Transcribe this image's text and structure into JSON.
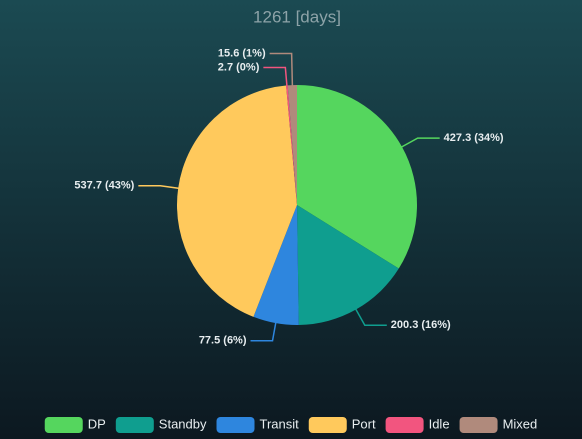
{
  "chart_data": {
    "type": "pie",
    "title": "1261 [days]",
    "categories": [
      "DP",
      "Standby",
      "Transit",
      "Port",
      "Idle",
      "Mixed"
    ],
    "values": [
      427.3,
      200.3,
      77.5,
      537.7,
      2.7,
      15.6
    ],
    "value_labels": [
      "427.3 (34%)",
      "200.3 (16%)",
      "77.5 (6%)",
      "537.7 (43%)",
      "2.7 (0%)",
      "15.6 (1%)"
    ],
    "colors": [
      "#55d65e",
      "#0f9e8f",
      "#2e86de",
      "#ffc95c",
      "#f2557f",
      "#b08a7c"
    ],
    "legend": "bottom"
  }
}
